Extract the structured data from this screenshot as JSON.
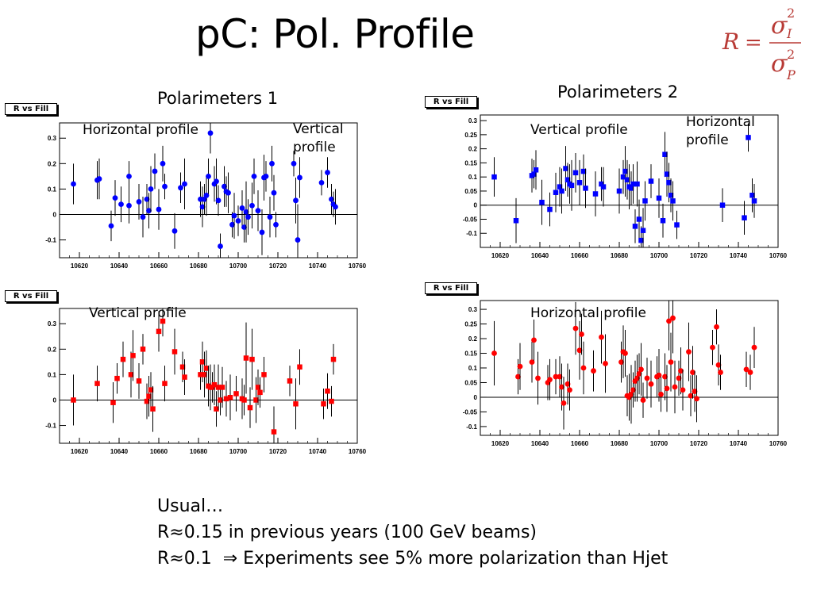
{
  "slide": {
    "title": "pC: Pol. Profile",
    "group1": "Polarimeters 1",
    "group2": "Polarimeters 2",
    "notes": [
      "Usual…",
      "R≈0.15 in previous years (100 GeV beams)",
      "R≈0.1  ⇒ Experiments see 5% more polarization than Hjet"
    ],
    "formula": {
      "lhs": "R",
      "num": "σ",
      "num_sub": "I",
      "num_sup": "2",
      "den": "σ",
      "den_sub": "P",
      "den_sup": "2",
      "color": "#b83a35"
    }
  },
  "chart_data": [
    {
      "id": "p1",
      "type": "scatter",
      "title": "R vs Fill",
      "labels": [
        "Horizontal profile",
        "Vertical profile"
      ],
      "marker": "circle",
      "color": "#0000ff",
      "xlim": [
        10610,
        10760
      ],
      "ylim": [
        -0.17,
        0.36
      ],
      "xticks": [
        10620,
        10640,
        10660,
        10680,
        10700,
        10720,
        10740,
        10760
      ],
      "yticks": [
        -0.1,
        0,
        0.1,
        0.2,
        0.3
      ],
      "x": [
        10617,
        10629,
        10630,
        10636,
        10638,
        10641,
        10645,
        10645,
        10650,
        10652,
        10654,
        10655,
        10656,
        10658,
        10660,
        10662,
        10663,
        10668,
        10671,
        10673,
        10681,
        10682,
        10683,
        10684,
        10685,
        10686,
        10688,
        10689,
        10690,
        10691,
        10693,
        10694,
        10695,
        10697,
        10698,
        10700,
        10702,
        10703,
        10704,
        10705,
        10707,
        10708,
        10710,
        10712,
        10713,
        10714,
        10716,
        10717,
        10718,
        10719,
        10728,
        10729,
        10730,
        10731,
        10742,
        10745,
        10747,
        10748,
        10749
      ],
      "y": [
        0.12,
        0.135,
        0.14,
        -0.045,
        0.065,
        0.04,
        0.15,
        0.035,
        0.05,
        -0.01,
        0.06,
        0.015,
        0.1,
        0.17,
        0.02,
        0.2,
        0.11,
        -0.065,
        0.105,
        0.12,
        0.06,
        0.03,
        0.06,
        0.075,
        0.15,
        0.32,
        0.12,
        0.13,
        0.055,
        -0.125,
        0.11,
        0.09,
        0.085,
        -0.04,
        -0.005,
        -0.025,
        0.025,
        -0.05,
        0.01,
        -0.01,
        0.035,
        0.15,
        0.015,
        -0.07,
        0.145,
        0.15,
        -0.01,
        0.2,
        0.085,
        -0.04,
        0.2,
        0.055,
        -0.1,
        0.145,
        0.125,
        0.165,
        0.06,
        0.04,
        0.03
      ],
      "err": [
        0.08,
        0.075,
        0.08,
        0.06,
        0.07,
        0.07,
        0.06,
        0.07,
        0.07,
        0.08,
        0.06,
        0.07,
        0.09,
        0.07,
        0.08,
        0.07,
        0.05,
        0.07,
        0.06,
        0.1,
        0.07,
        0.08,
        0.06,
        0.08,
        0.07,
        0.08,
        0.07,
        0.09,
        0.06,
        0.05,
        0.08,
        0.06,
        0.08,
        0.05,
        0.09,
        0.06,
        0.07,
        0.06,
        0.12,
        0.07,
        0.09,
        0.07,
        0.08,
        0.09,
        0.09,
        0.06,
        0.08,
        0.07,
        0.07,
        0.05,
        0.05,
        0.09,
        0.14,
        0.08,
        0.05,
        0.06,
        0.06,
        0.05,
        0.07
      ]
    },
    {
      "id": "p2",
      "type": "scatter",
      "title": "R vs Fill",
      "labels": [
        "Vertical profile",
        "Horizontal profile"
      ],
      "marker": "square",
      "color": "#0000ff",
      "xlim": [
        10610,
        10760
      ],
      "ylim": [
        -0.15,
        0.32
      ],
      "xticks": [
        10620,
        10640,
        10660,
        10680,
        10700,
        10720,
        10740,
        10760
      ],
      "yticks": [
        -0.1,
        -0.05,
        0,
        0.05,
        0.1,
        0.15,
        0.2,
        0.25,
        0.3
      ],
      "x": [
        10617,
        10628,
        10636,
        10637,
        10638,
        10641,
        10645,
        10648,
        10650,
        10651,
        10653,
        10654,
        10655,
        10656,
        10658,
        10660,
        10662,
        10663,
        10668,
        10671,
        10672,
        10680,
        10682,
        10683,
        10684,
        10685,
        10686,
        10687,
        10688,
        10689,
        10690,
        10691,
        10692,
        10693,
        10696,
        10700,
        10702,
        10703,
        10704,
        10705,
        10706,
        10707,
        10709,
        10732,
        10743,
        10745,
        10747,
        10748
      ],
      "y": [
        0.1,
        -0.055,
        0.105,
        0.11,
        0.125,
        0.01,
        -0.015,
        0.045,
        0.065,
        0.05,
        0.13,
        0.09,
        0.075,
        0.07,
        0.115,
        0.08,
        0.12,
        0.06,
        0.04,
        0.075,
        0.065,
        0.05,
        0.1,
        0.12,
        0.09,
        0.065,
        0.06,
        0.075,
        -0.075,
        0.075,
        -0.05,
        -0.125,
        -0.09,
        0.015,
        0.085,
        0.025,
        -0.055,
        0.18,
        0.11,
        0.08,
        0.035,
        0.015,
        -0.07,
        0.0,
        -0.045,
        0.24,
        0.035,
        0.015
      ],
      "err": [
        0.07,
        0.08,
        0.06,
        0.05,
        0.07,
        0.08,
        0.06,
        0.07,
        0.07,
        0.08,
        0.08,
        0.06,
        0.07,
        0.09,
        0.07,
        0.08,
        0.06,
        0.07,
        0.08,
        0.06,
        0.07,
        0.08,
        0.06,
        0.09,
        0.07,
        0.08,
        0.06,
        0.07,
        0.06,
        0.08,
        0.07,
        0.05,
        0.08,
        0.07,
        0.06,
        0.07,
        0.06,
        0.08,
        0.08,
        0.07,
        0.06,
        0.07,
        0.05,
        0.06,
        0.06,
        0.05,
        0.06,
        0.06
      ]
    },
    {
      "id": "p3",
      "type": "scatter",
      "title": "R vs Fill",
      "labels": [
        "Vertical profile"
      ],
      "marker": "square",
      "color": "#ff0000",
      "xlim": [
        10610,
        10760
      ],
      "ylim": [
        -0.17,
        0.36
      ],
      "xticks": [
        10620,
        10640,
        10660,
        10680,
        10700,
        10720,
        10740,
        10760
      ],
      "yticks": [
        -0.1,
        0,
        0.1,
        0.2,
        0.3
      ],
      "x": [
        10617,
        10629,
        10637,
        10639,
        10642,
        10646,
        10647,
        10650,
        10652,
        10654,
        10655,
        10656,
        10657,
        10660,
        10662,
        10663,
        10668,
        10672,
        10673,
        10681,
        10682,
        10683,
        10684,
        10685,
        10686,
        10687,
        10688,
        10689,
        10690,
        10691,
        10692,
        10694,
        10696,
        10699,
        10702,
        10703,
        10704,
        10706,
        10707,
        10709,
        10710,
        10711,
        10713,
        10718,
        10726,
        10729,
        10731,
        10743,
        10745,
        10747,
        10748
      ],
      "y": [
        0.0,
        0.065,
        -0.01,
        0.085,
        0.16,
        0.1,
        0.175,
        0.075,
        0.2,
        -0.005,
        0.015,
        0.04,
        -0.035,
        0.27,
        0.31,
        0.065,
        0.19,
        0.13,
        0.09,
        0.1,
        0.15,
        0.1,
        0.125,
        0.055,
        0.05,
        0.05,
        0.06,
        -0.035,
        0.05,
        0.0,
        0.05,
        0.005,
        0.01,
        0.025,
        0.005,
        0.0,
        0.165,
        -0.03,
        0.16,
        0.0,
        0.05,
        0.03,
        0.1,
        -0.125,
        0.075,
        -0.015,
        0.13,
        -0.015,
        0.035,
        -0.005,
        0.16
      ],
      "err": [
        0.1,
        0.07,
        0.08,
        0.06,
        0.07,
        0.09,
        0.1,
        0.07,
        0.06,
        0.07,
        0.08,
        0.07,
        0.09,
        0.08,
        0.06,
        0.07,
        0.09,
        0.06,
        0.07,
        0.06,
        0.08,
        0.09,
        0.07,
        0.08,
        0.09,
        0.06,
        0.08,
        0.07,
        0.09,
        0.06,
        0.08,
        0.07,
        0.09,
        0.07,
        0.08,
        0.06,
        0.14,
        0.08,
        0.12,
        0.09,
        0.07,
        0.06,
        0.07,
        0.1,
        0.06,
        0.1,
        0.07,
        0.06,
        0.07,
        0.06,
        0.06
      ]
    },
    {
      "id": "p4",
      "type": "scatter",
      "title": "R vs Fill",
      "labels": [
        "Horizontal profile"
      ],
      "marker": "circle",
      "color": "#ff0000",
      "xlim": [
        10610,
        10760
      ],
      "ylim": [
        -0.13,
        0.33
      ],
      "xticks": [
        10620,
        10640,
        10660,
        10680,
        10700,
        10720,
        10740,
        10760
      ],
      "yticks": [
        -0.1,
        -0.05,
        0,
        0.05,
        0.1,
        0.15,
        0.2,
        0.25,
        0.3
      ],
      "x": [
        10617,
        10629,
        10630,
        10636,
        10637,
        10639,
        10644,
        10645,
        10648,
        10650,
        10651,
        10652,
        10654,
        10655,
        10658,
        10660,
        10661,
        10662,
        10667,
        10671,
        10673,
        10681,
        10682,
        10683,
        10684,
        10685,
        10686,
        10687,
        10688,
        10689,
        10690,
        10691,
        10692,
        10694,
        10696,
        10699,
        10700,
        10701,
        10703,
        10704,
        10705,
        10706,
        10707,
        10708,
        10710,
        10711,
        10712,
        10715,
        10716,
        10717,
        10718,
        10719,
        10727,
        10729,
        10730,
        10731,
        10744,
        10746,
        10748
      ],
      "y": [
        0.15,
        0.07,
        0.105,
        0.12,
        0.195,
        0.065,
        0.05,
        0.06,
        0.07,
        0.07,
        0.035,
        -0.02,
        0.045,
        0.025,
        0.235,
        0.16,
        0.215,
        0.1,
        0.09,
        0.205,
        0.115,
        0.12,
        0.155,
        0.15,
        0.005,
        0.0,
        0.01,
        0.025,
        0.055,
        0.065,
        0.08,
        0.095,
        -0.01,
        0.065,
        0.045,
        0.07,
        0.075,
        0.01,
        0.07,
        0.03,
        0.26,
        0.12,
        0.27,
        0.035,
        0.065,
        0.09,
        0.025,
        0.155,
        0.005,
        0.085,
        0.02,
        -0.005,
        0.17,
        0.24,
        0.11,
        0.085,
        0.095,
        0.085,
        0.17
      ],
      "err": [
        0.11,
        0.06,
        0.08,
        0.07,
        0.07,
        0.09,
        0.06,
        0.07,
        0.06,
        0.07,
        0.08,
        0.09,
        0.07,
        0.07,
        0.09,
        0.1,
        0.07,
        0.09,
        0.07,
        0.09,
        0.1,
        0.07,
        0.09,
        0.08,
        0.07,
        0.08,
        0.1,
        0.06,
        0.07,
        0.08,
        0.07,
        0.09,
        0.06,
        0.07,
        0.08,
        0.07,
        0.09,
        0.06,
        0.08,
        0.08,
        0.1,
        0.1,
        0.12,
        0.09,
        0.06,
        0.08,
        0.07,
        0.1,
        0.07,
        0.09,
        0.07,
        0.08,
        0.06,
        0.06,
        0.07,
        0.06,
        0.06,
        0.06,
        0.07
      ]
    }
  ]
}
